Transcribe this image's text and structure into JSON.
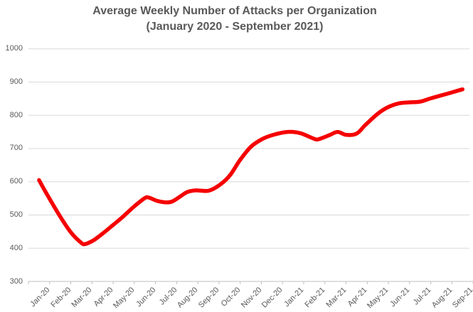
{
  "chart_data": {
    "type": "line",
    "title": "Average Weekly Number of Attacks per Organization",
    "subtitle": "(January 2020 - September 2021)",
    "categories": [
      "Jan-20",
      "Feb-20",
      "Mar-20",
      "Apr-20",
      "May-20",
      "Jun-20",
      "Jul-20",
      "Aug-20",
      "Sep-20",
      "Oct-20",
      "Nov-20",
      "Dec-20",
      "Jan-21",
      "Feb-21",
      "Mar-21",
      "Apr-21",
      "May-21",
      "Jun-21",
      "Jul-21",
      "Aug-21",
      "Sep-21"
    ],
    "values": [
      605,
      495,
      415,
      444,
      497,
      551,
      538,
      569,
      573,
      618,
      705,
      740,
      750,
      729,
      748,
      745,
      805,
      836,
      841,
      860,
      878
    ],
    "intramonth_curve_points": [
      [
        0,
        605
      ],
      [
        0.35,
        565
      ],
      [
        1,
        495
      ],
      [
        1.5,
        448
      ],
      [
        2,
        416
      ],
      [
        2.2,
        413
      ],
      [
        2.6,
        425
      ],
      [
        3,
        444
      ],
      [
        3.5,
        470
      ],
      [
        4,
        497
      ],
      [
        4.5,
        526
      ],
      [
        5,
        551
      ],
      [
        5.2,
        552
      ],
      [
        5.6,
        542
      ],
      [
        6,
        538
      ],
      [
        6.3,
        541
      ],
      [
        6.7,
        557
      ],
      [
        7,
        569
      ],
      [
        7.4,
        574
      ],
      [
        8,
        573
      ],
      [
        8.5,
        589
      ],
      [
        9,
        618
      ],
      [
        9.5,
        666
      ],
      [
        10,
        705
      ],
      [
        10.5,
        727
      ],
      [
        11,
        740
      ],
      [
        11.6,
        749
      ],
      [
        12,
        750
      ],
      [
        12.4,
        745
      ],
      [
        13,
        729
      ],
      [
        13.2,
        728
      ],
      [
        13.7,
        740
      ],
      [
        14.1,
        750
      ],
      [
        14.5,
        741
      ],
      [
        15,
        745
      ],
      [
        15.4,
        770
      ],
      [
        16,
        805
      ],
      [
        16.5,
        825
      ],
      [
        17,
        836
      ],
      [
        17.5,
        839
      ],
      [
        18,
        841
      ],
      [
        18.5,
        851
      ],
      [
        19,
        860
      ],
      [
        19.5,
        869
      ],
      [
        20,
        878
      ]
    ],
    "ylim": [
      300,
      1000
    ],
    "yticks": [
      1000,
      900,
      800,
      700,
      600,
      500,
      400,
      300
    ],
    "grid": true,
    "legend_position": "none"
  },
  "colors": {
    "line": "#f50000",
    "title_text": "#595959",
    "axis_text": "#595959",
    "gridline": "#d9d9d9",
    "axis_line": "#bfbfbf",
    "background": "#ffffff"
  }
}
